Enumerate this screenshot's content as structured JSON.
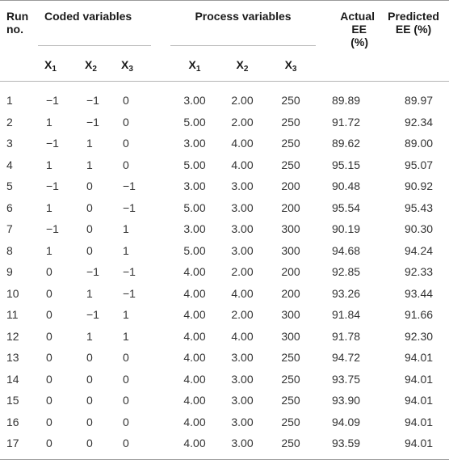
{
  "headers": {
    "run_line1": "Run",
    "run_line2": "no.",
    "coded_group": "Coded variables",
    "process_group": "Process variables",
    "actual_line1": "Actual",
    "actual_line2": "EE",
    "actual_line3": "(%)",
    "predicted_line1": "Predicted",
    "predicted_line2": "EE (%)",
    "x_letter": "X",
    "sub1": "1",
    "sub2": "2",
    "sub3": "3"
  },
  "rows": [
    [
      "1",
      "−1",
      "−1",
      "0",
      "3.00",
      "2.00",
      "250",
      "89.89",
      "89.97"
    ],
    [
      "2",
      "1",
      "−1",
      "0",
      "5.00",
      "2.00",
      "250",
      "91.72",
      "92.34"
    ],
    [
      "3",
      "−1",
      "1",
      "0",
      "3.00",
      "4.00",
      "250",
      "89.62",
      "89.00"
    ],
    [
      "4",
      "1",
      "1",
      "0",
      "5.00",
      "4.00",
      "250",
      "95.15",
      "95.07"
    ],
    [
      "5",
      "−1",
      "0",
      "−1",
      "3.00",
      "3.00",
      "200",
      "90.48",
      "90.92"
    ],
    [
      "6",
      "1",
      "0",
      "−1",
      "5.00",
      "3.00",
      "200",
      "95.54",
      "95.43"
    ],
    [
      "7",
      "−1",
      "0",
      "1",
      "3.00",
      "3.00",
      "300",
      "90.19",
      "90.30"
    ],
    [
      "8",
      "1",
      "0",
      "1",
      "5.00",
      "3.00",
      "300",
      "94.68",
      "94.24"
    ],
    [
      "9",
      "0",
      "−1",
      "−1",
      "4.00",
      "2.00",
      "200",
      "92.85",
      "92.33"
    ],
    [
      "10",
      "0",
      "1",
      "−1",
      "4.00",
      "4.00",
      "200",
      "93.26",
      "93.44"
    ],
    [
      "11",
      "0",
      "−1",
      "1",
      "4.00",
      "2.00",
      "300",
      "91.84",
      "91.66"
    ],
    [
      "12",
      "0",
      "1",
      "1",
      "4.00",
      "4.00",
      "300",
      "91.78",
      "92.30"
    ],
    [
      "13",
      "0",
      "0",
      "0",
      "4.00",
      "3.00",
      "250",
      "94.72",
      "94.01"
    ],
    [
      "14",
      "0",
      "0",
      "0",
      "4.00",
      "3.00",
      "250",
      "93.75",
      "94.01"
    ],
    [
      "15",
      "0",
      "0",
      "0",
      "4.00",
      "3.00",
      "250",
      "93.90",
      "94.01"
    ],
    [
      "16",
      "0",
      "0",
      "0",
      "4.00",
      "3.00",
      "250",
      "94.09",
      "94.01"
    ],
    [
      "17",
      "0",
      "0",
      "0",
      "4.00",
      "3.00",
      "250",
      "93.59",
      "94.01"
    ]
  ]
}
